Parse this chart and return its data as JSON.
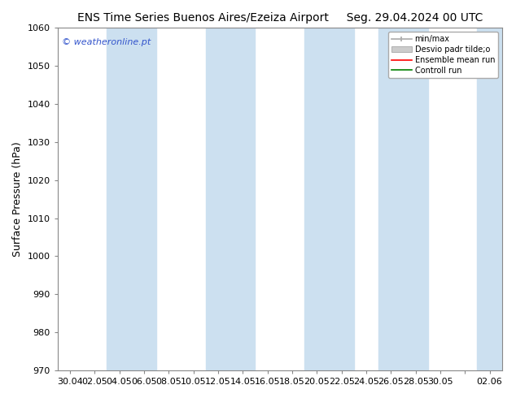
{
  "title_left": "ENS Time Series Buenos Aires/Ezeiza Airport",
  "title_right": "Seg. 29.04.2024 00 UTC",
  "ylabel": "Surface Pressure (hPa)",
  "ylim": [
    970,
    1060
  ],
  "yticks": [
    970,
    980,
    990,
    1000,
    1010,
    1020,
    1030,
    1040,
    1050,
    1060
  ],
  "xtick_labels": [
    "30.04",
    "02.05",
    "04.05",
    "06.05",
    "08.05",
    "10.05",
    "12.05",
    "14.05",
    "16.05",
    "18.05",
    "20.05",
    "22.05",
    "24.05",
    "26.05",
    "28.05",
    "30.05",
    "",
    "02.06"
  ],
  "watermark": "© weatheronline.pt",
  "legend_entries": [
    "min/max",
    "Desvio padr tilde;o",
    "Ensemble mean run",
    "Controll run"
  ],
  "bg_color": "#ffffff",
  "plot_bg_color": "#ffffff",
  "band_color": "#cce0f0",
  "title_fontsize": 10,
  "axis_label_fontsize": 9,
  "tick_fontsize": 8,
  "watermark_color": "#3355cc"
}
